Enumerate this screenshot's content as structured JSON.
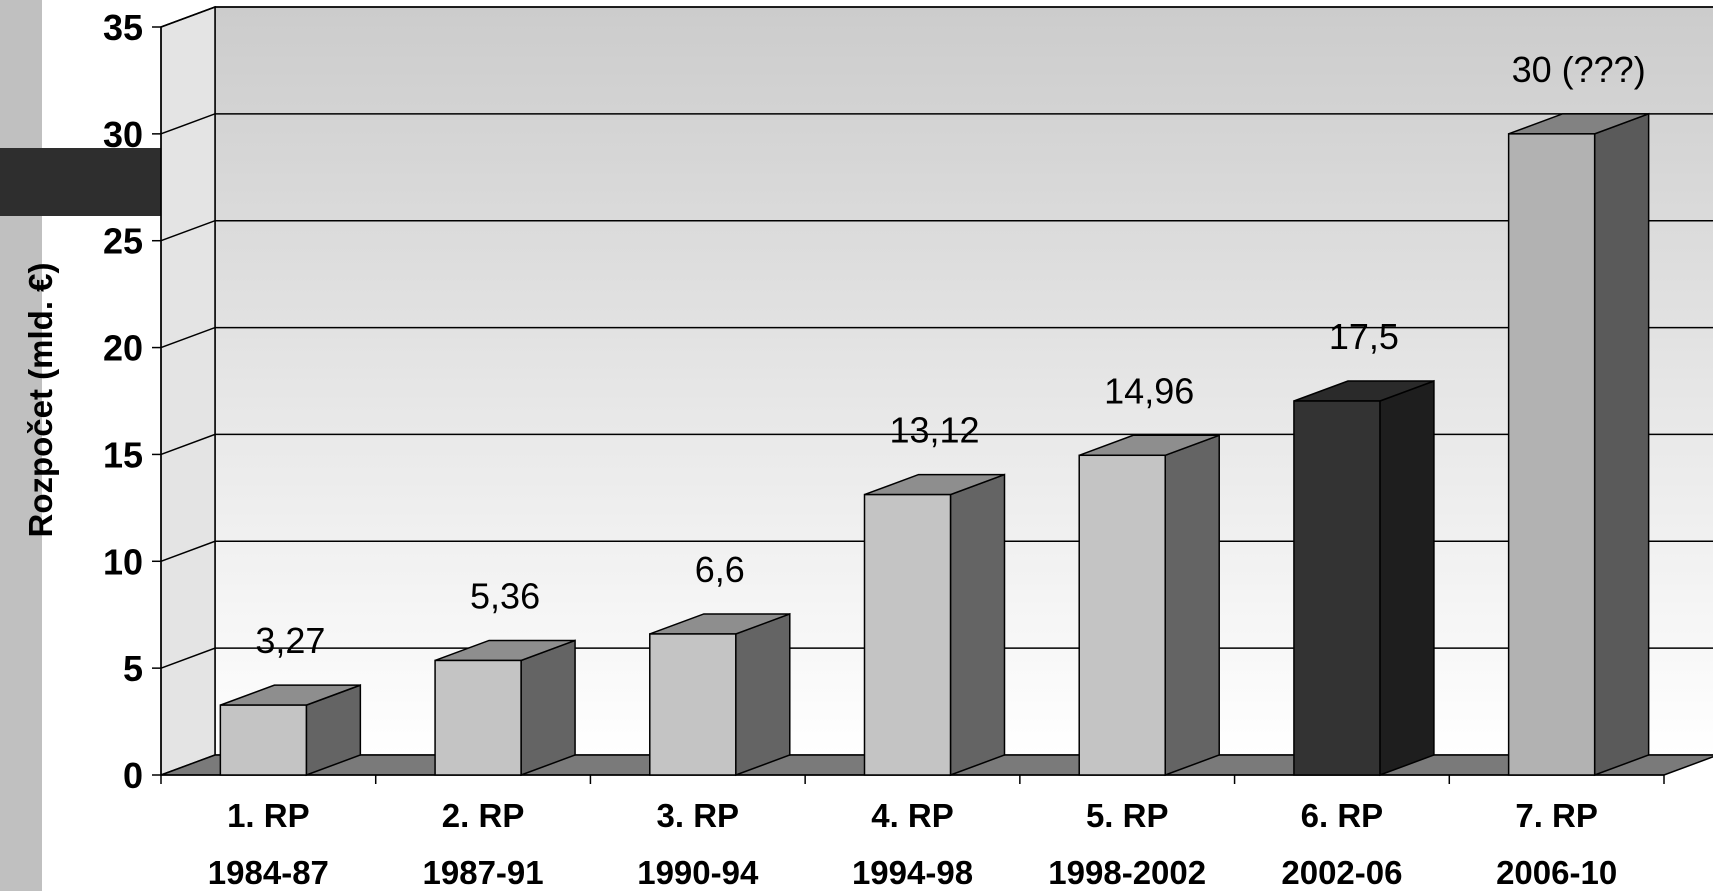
{
  "chart_data": {
    "type": "bar",
    "title": "",
    "xlabel": "",
    "ylabel": "Rozpočet (mld. €)",
    "ylim": [
      0,
      35
    ],
    "yticks": [
      0,
      5,
      10,
      15,
      20,
      25,
      30,
      35
    ],
    "grid": true,
    "legend": "none",
    "style": "3d-column",
    "categories": [
      [
        "1. RP",
        "1984-87"
      ],
      [
        "2. RP",
        "1987-91"
      ],
      [
        "3. RP",
        "1990-94"
      ],
      [
        "4. RP",
        "1994-98"
      ],
      [
        "5. RP",
        "1998-2002"
      ],
      [
        "6. RP",
        "2002-06"
      ],
      [
        "7. RP",
        "2006-10"
      ]
    ],
    "values": [
      3.27,
      5.36,
      6.6,
      13.12,
      14.96,
      17.5,
      30
    ],
    "data_labels": [
      "3,27",
      "5,36",
      "6,6",
      "13,12",
      "14,96",
      "17,5",
      "30 (???)"
    ],
    "bar_colors": [
      {
        "front": "#c4c4c4",
        "side": "#646464",
        "top": "#8e8e8e"
      },
      {
        "front": "#c4c4c4",
        "side": "#646464",
        "top": "#8e8e8e"
      },
      {
        "front": "#c4c4c4",
        "side": "#646464",
        "top": "#8e8e8e"
      },
      {
        "front": "#c4c4c4",
        "side": "#646464",
        "top": "#8e8e8e"
      },
      {
        "front": "#c4c4c4",
        "side": "#646464",
        "top": "#8e8e8e"
      },
      {
        "front": "#333333",
        "side": "#1e1e1e",
        "top": "#2a2a2a"
      },
      {
        "front": "#b2b2b2",
        "side": "#5a5a5a",
        "top": "#828282"
      }
    ]
  }
}
